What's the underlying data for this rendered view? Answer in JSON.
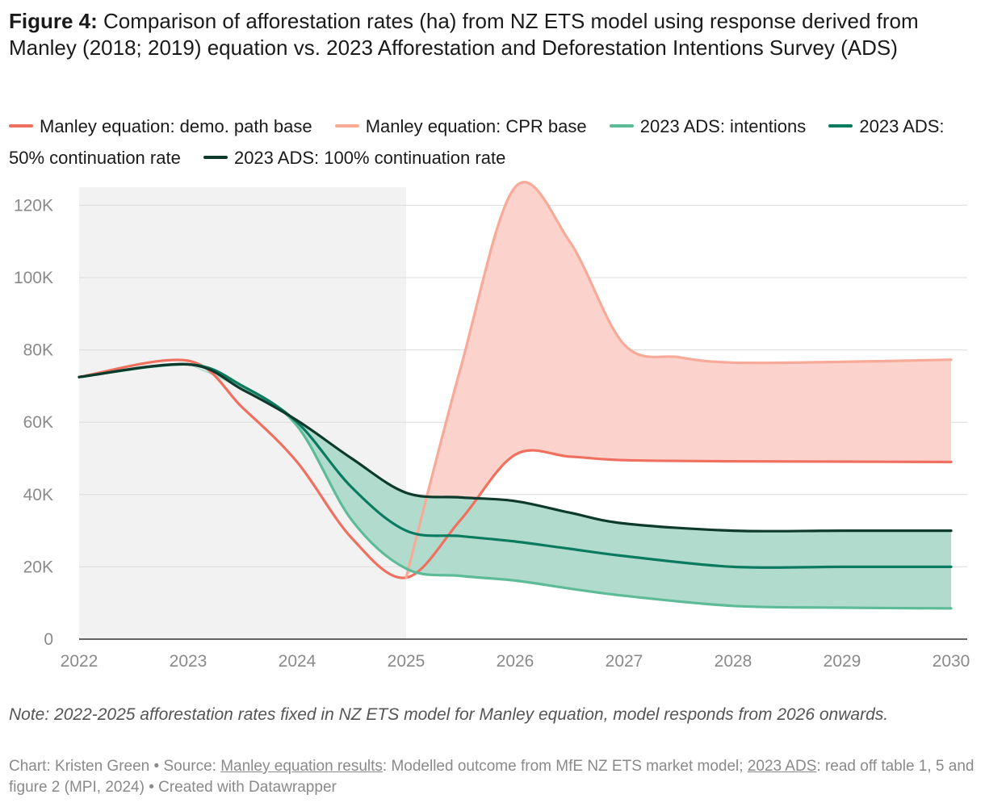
{
  "header": {
    "fig_label": "Figure 4:",
    "title": "Comparison of afforestation rates (ha) from NZ ETS model using response derived from Manley (2018; 2019) equation vs. 2023 Afforestation and Deforestation Intentions Survey (ADS)"
  },
  "footer": {
    "note": "Note: 2022-2025 afforestation rates fixed in NZ ETS model for Manley equation, model responds from 2026 onwards.",
    "credit_prefix": "Chart: Kristen Green • Source: ",
    "source1": "Manley equation results",
    "mid": ": Modelled outcome from MfE NZ ETS market model; ",
    "source2": "2023 ADS",
    "suffix": ": read off table 1, 5 and figure 2 (MPI, 2024) • Created with Datawrapper"
  },
  "chart_data": {
    "type": "line",
    "x": [
      2022,
      2023,
      2024,
      2025,
      2026,
      2027,
      2028,
      2029,
      2030
    ],
    "xlim": [
      2022,
      2030
    ],
    "ylim": [
      0,
      125000
    ],
    "y_ticks": [
      0,
      20000,
      40000,
      60000,
      80000,
      100000,
      120000
    ],
    "y_tick_labels": [
      "0",
      "20K",
      "40K",
      "60K",
      "80K",
      "100K",
      "120K"
    ],
    "x_tick_labels": [
      "2022",
      "2023",
      "2024",
      "2025",
      "2026",
      "2027",
      "2028",
      "2029",
      "2030"
    ],
    "grid": true,
    "legend_position": "top",
    "shaded_period": [
      2022,
      2025
    ],
    "series": [
      {
        "name": "Manley equation: demo. path base",
        "color": "#f07060",
        "points": [
          [
            2022,
            72500
          ],
          [
            2023,
            77000
          ],
          [
            2023.5,
            64000
          ],
          [
            2024,
            49000
          ],
          [
            2024.5,
            28000
          ],
          [
            2025,
            17000
          ],
          [
            2025.5,
            33000
          ],
          [
            2026,
            51000
          ],
          [
            2026.5,
            50500
          ],
          [
            2027,
            49500
          ],
          [
            2028,
            49200
          ],
          [
            2029,
            49100
          ],
          [
            2030,
            49000
          ]
        ]
      },
      {
        "name": "Manley equation: CPR base",
        "color": "#f8aa98",
        "points": [
          [
            2025,
            17000
          ],
          [
            2025.5,
            75000
          ],
          [
            2026,
            125000
          ],
          [
            2026.5,
            110000
          ],
          [
            2027,
            81500
          ],
          [
            2027.5,
            78000
          ],
          [
            2028,
            76500
          ],
          [
            2029,
            76700
          ],
          [
            2030,
            77300
          ]
        ]
      },
      {
        "name": "2023 ADS: intentions",
        "color": "#5dbb98",
        "points": [
          [
            2022,
            72500
          ],
          [
            2023,
            76000
          ],
          [
            2023.5,
            70000
          ],
          [
            2024,
            59000
          ],
          [
            2024.5,
            33000
          ],
          [
            2025,
            19500
          ],
          [
            2025.5,
            17500
          ],
          [
            2026,
            16200
          ],
          [
            2026.5,
            14000
          ],
          [
            2027,
            12000
          ],
          [
            2028,
            9200
          ],
          [
            2029,
            8700
          ],
          [
            2030,
            8500
          ]
        ]
      },
      {
        "name": "2023 ADS: 50% continuation rate",
        "color": "#0b7b60",
        "points": [
          [
            2022,
            72500
          ],
          [
            2023,
            76000
          ],
          [
            2023.5,
            70000
          ],
          [
            2024,
            60000
          ],
          [
            2024.5,
            42000
          ],
          [
            2025,
            30000
          ],
          [
            2025.5,
            28500
          ],
          [
            2026,
            27000
          ],
          [
            2026.5,
            25000
          ],
          [
            2027,
            23000
          ],
          [
            2028,
            20000
          ],
          [
            2029,
            20000
          ],
          [
            2030,
            20000
          ]
        ]
      },
      {
        "name": "2023 ADS: 100% continuation rate",
        "color": "#0d3a2b",
        "points": [
          [
            2022,
            72500
          ],
          [
            2023,
            76000
          ],
          [
            2023.5,
            69000
          ],
          [
            2024,
            60500
          ],
          [
            2024.5,
            50000
          ],
          [
            2025,
            40500
          ],
          [
            2025.5,
            39200
          ],
          [
            2026,
            38200
          ],
          [
            2026.5,
            35000
          ],
          [
            2027,
            32000
          ],
          [
            2028,
            30000
          ],
          [
            2029,
            30000
          ],
          [
            2030,
            30000
          ]
        ]
      }
    ],
    "bands": [
      {
        "lower": "Manley equation: demo. path base",
        "upper": "Manley equation: CPR base",
        "color": "#fcd2cc",
        "from": 2025
      },
      {
        "lower": "2023 ADS: intentions",
        "upper": "2023 ADS: 100% continuation rate",
        "color": "#b1dccd",
        "from": 2023
      }
    ]
  }
}
